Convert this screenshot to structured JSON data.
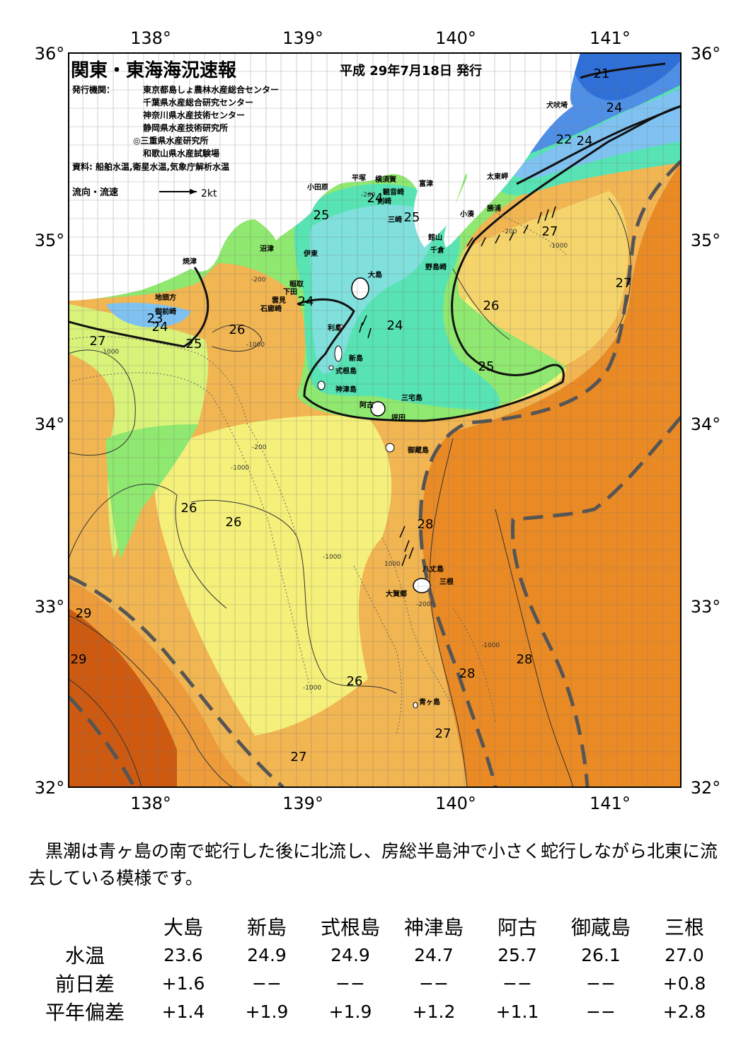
{
  "header": {
    "title": "関東・東海海況速報",
    "date": "平成 29年7月18日 発行",
    "publisher_label": "発行機関：",
    "publishers": [
      "東京都島しょ農林水産総合センター",
      "千葉県水産総合研究センター",
      "神奈川県水産技術センター",
      "静岡県水産技術研究所",
      "◎三重県水産研究所",
      "和歌山県水産試験場"
    ],
    "source": "資料: 船舶水温,衛星水温,気象庁解析水温",
    "current_legend": "流向・流速",
    "current_scale": "2kt"
  },
  "axes": {
    "lon_labels": [
      "138°",
      "139°",
      "140°",
      "141°"
    ],
    "lat_labels": [
      "36°",
      "35°",
      "34°",
      "33°",
      "32°"
    ]
  },
  "colors": {
    "temp21": "#2f6fd8",
    "temp22": "#4f8fe6",
    "temp23": "#7fc2f2",
    "temp24": "#7fe0dc",
    "temp245": "#57e3b3",
    "temp25": "#8fe86f",
    "temp255": "#d9f27a",
    "temp26": "#f5f07a",
    "temp265": "#f5d56b",
    "temp27": "#f1b552",
    "temp275": "#ee9b3a",
    "temp28": "#ea8a24",
    "temp29": "#cd5a10",
    "land": "#ffffff",
    "kuroshio": "#555555"
  },
  "places": [
    "犬吠埼",
    "太東岬",
    "勝浦",
    "小湊",
    "平塚",
    "横須賀",
    "観音崎",
    "剣崎",
    "三崎",
    "富津",
    "館山",
    "千倉",
    "野島崎",
    "小田原",
    "沼津",
    "伊東",
    "稲取",
    "下田",
    "雲見",
    "石廊崎",
    "焼津",
    "地頭方",
    "御前崎",
    "大島",
    "利島",
    "新島",
    "式根島",
    "神津島",
    "三宅島",
    "阿古",
    "坪田",
    "御蔵島",
    "八丈島",
    "三根",
    "大賀郷",
    "青ヶ島"
  ],
  "isotherm_labels": [
    "21",
    "24",
    "22",
    "24",
    "27",
    "24",
    "25",
    "25",
    "24",
    "27",
    "26",
    "24",
    "23",
    "24",
    "25",
    "26",
    "27",
    "25",
    "28",
    "26",
    "26",
    "29",
    "29",
    "28",
    "28",
    "26",
    "27",
    "27"
  ],
  "depth_labels": [
    "-200",
    "-1000",
    "-200",
    "-1000",
    "-200",
    "-1000",
    "-200",
    "-1000",
    "1000",
    "-200",
    "-1000",
    "-1000",
    "-1000"
  ],
  "summary": {
    "text": "黒潮は青ヶ島の南で蛇行した後に北流し、房総半島沖で小さく蛇行しながら北東に流去している模様です。"
  },
  "table": {
    "columns": [
      "大島",
      "新島",
      "式根島",
      "神津島",
      "阿古",
      "御蔵島",
      "三根"
    ],
    "rows": [
      {
        "label": "水温",
        "values": [
          "23.6",
          "24.9",
          "24.9",
          "24.7",
          "25.7",
          "26.1",
          "27.0"
        ]
      },
      {
        "label": "前日差",
        "values": [
          "+1.6",
          "−−",
          "−−",
          "−−",
          "−−",
          "−−",
          "+0.8"
        ]
      },
      {
        "label": "平年偏差",
        "values": [
          "+1.4",
          "+1.9",
          "+1.9",
          "+1.2",
          "+1.1",
          "−−",
          "+2.8"
        ]
      }
    ]
  }
}
